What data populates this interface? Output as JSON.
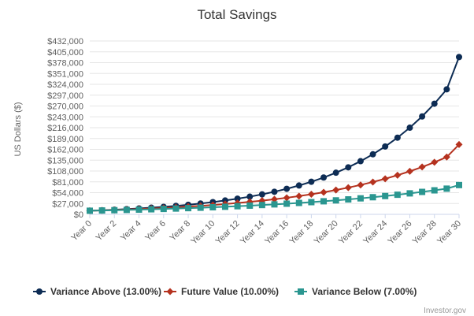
{
  "chart_data": {
    "type": "line",
    "title": "Total Savings",
    "ylabel": "US Dollars ($)",
    "xlabel": "",
    "credit": "Investor.gov",
    "ylim": [
      0,
      432000
    ],
    "y_ticks": [
      "$0",
      "$27,000",
      "$54,000",
      "$81,000",
      "$108,000",
      "$135,000",
      "$162,000",
      "$189,000",
      "$216,000",
      "$243,000",
      "$270,000",
      "$297,000",
      "$324,000",
      "$351,000",
      "$378,000",
      "$405,000",
      "$432,000"
    ],
    "x_tick_labels": [
      "Year 0",
      "Year 2",
      "Year 4",
      "Year 6",
      "Year 8",
      "Year 10",
      "Year 12",
      "Year 14",
      "Year 16",
      "Year 18",
      "Year 20",
      "Year 22",
      "Year 24",
      "Year 26",
      "Year 28",
      "Year 30"
    ],
    "x": [
      0,
      1,
      2,
      3,
      4,
      5,
      6,
      7,
      8,
      9,
      10,
      11,
      12,
      13,
      14,
      15,
      16,
      17,
      18,
      19,
      20,
      21,
      22,
      23,
      24,
      25,
      26,
      27,
      28,
      29,
      30
    ],
    "grid": "horizontal",
    "legend_position": "bottom",
    "series": [
      {
        "name": "Variance Above (13.00%)",
        "color": "#0d2c54",
        "marker": "circle",
        "values": [
          9000,
          10170,
          11492,
          12986,
          14674,
          16582,
          18738,
          21173,
          23926,
          27036,
          30551,
          34523,
          39010,
          44082,
          49812,
          56288,
          63605,
          71874,
          81218,
          91776,
          103708,
          117190,
          132424,
          149639,
          169092,
          191075,
          215914,
          243983,
          275701,
          311542,
          392000
        ]
      },
      {
        "name": "Future Value (10.00%)",
        "color": "#b5321f",
        "marker": "diamond",
        "values": [
          9000,
          9900,
          10890,
          11979,
          13177,
          14495,
          15944,
          17538,
          19292,
          21222,
          23344,
          25678,
          28246,
          31071,
          34178,
          37596,
          41355,
          45491,
          50040,
          55044,
          60548,
          66603,
          73263,
          80590,
          88649,
          97514,
          107265,
          117992,
          129791,
          142770,
          174000
        ]
      },
      {
        "name": "Variance Below (7.00%)",
        "color": "#2a9690",
        "marker": "square",
        "values": [
          9000,
          9630,
          10304,
          11025,
          11797,
          12623,
          13507,
          14452,
          15464,
          16546,
          17704,
          18944,
          20270,
          21689,
          23207,
          24831,
          26570,
          28430,
          30420,
          32549,
          34828,
          37266,
          39874,
          42665,
          45652,
          48847,
          52267,
          55925,
          59840,
          64029,
          73000
        ]
      }
    ]
  }
}
